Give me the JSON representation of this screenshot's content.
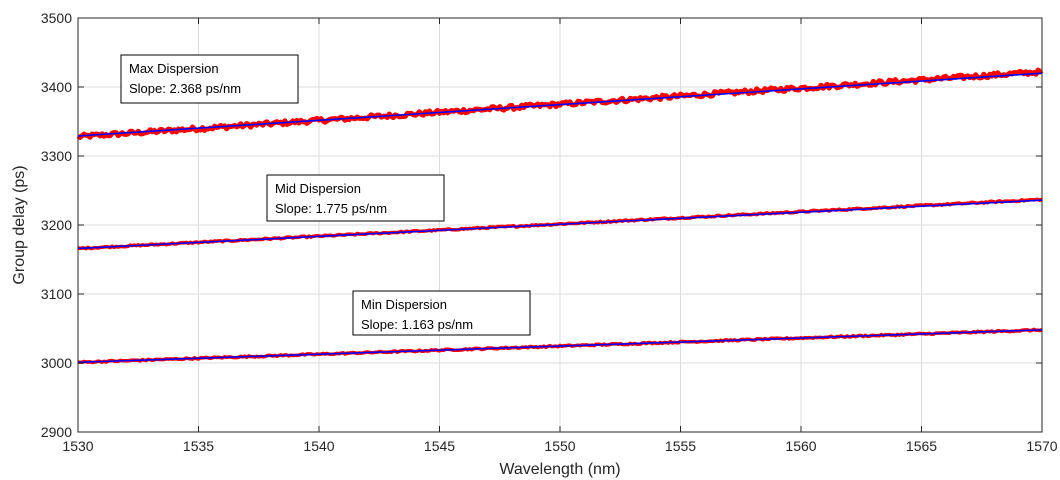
{
  "chart_data": {
    "type": "line",
    "xlabel": "Wavelength (nm)",
    "ylabel": "Group delay (ps)",
    "xlim": [
      1530,
      1570
    ],
    "ylim": [
      2900,
      3500
    ],
    "xticks": [
      1530,
      1535,
      1540,
      1545,
      1550,
      1555,
      1560,
      1565,
      1570
    ],
    "yticks": [
      2900,
      3000,
      3100,
      3200,
      3300,
      3400,
      3500
    ],
    "grid": true,
    "measured_color": "#ff0000",
    "fit_color": "#0000ff",
    "series": [
      {
        "measured_start": 3328,
        "measured_end": 3422,
        "fit_start": 3329,
        "fit_end": 3420,
        "noise": "high"
      },
      {
        "measured_start": 3166,
        "measured_end": 3237,
        "fit_start": 3166,
        "fit_end": 3236,
        "noise": "low"
      },
      {
        "measured_start": 3001,
        "measured_end": 3048,
        "fit_start": 3001,
        "fit_end": 3048,
        "noise": "low"
      }
    ],
    "annotations": [
      {
        "line1": "Max Dispersion",
        "line2": "Slope: 2.368 ps/nm"
      },
      {
        "line1": "Mid Dispersion",
        "line2": "Slope: 1.775 ps/nm"
      },
      {
        "line1": "Min Dispersion",
        "line2": "Slope: 1.163 ps/nm"
      }
    ]
  }
}
